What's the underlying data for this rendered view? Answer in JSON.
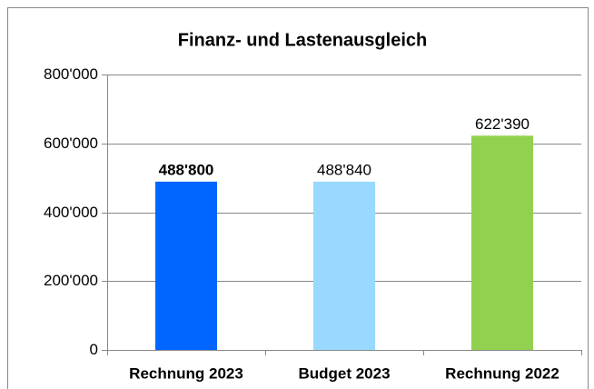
{
  "chart_data": {
    "type": "bar",
    "title": "Finanz- und Lastenausgleich",
    "categories": [
      "Rechnung 2023",
      "Budget 2023",
      "Rechnung 2022"
    ],
    "values": [
      488800,
      488840,
      622390
    ],
    "value_labels": [
      "488'800",
      "488'840",
      "622'390"
    ],
    "colors": [
      "#0066ff",
      "#99d9ff",
      "#92d050"
    ],
    "ylim": [
      0,
      800000
    ],
    "yticks": [
      0,
      {
        "value": 200000,
        "label": "200'000"
      },
      {
        "value": 400000,
        "label": "400'000"
      },
      {
        "value": 600000,
        "label": "600'000"
      },
      {
        "value": 800000,
        "label": "800'000"
      }
    ],
    "grid": true
  }
}
